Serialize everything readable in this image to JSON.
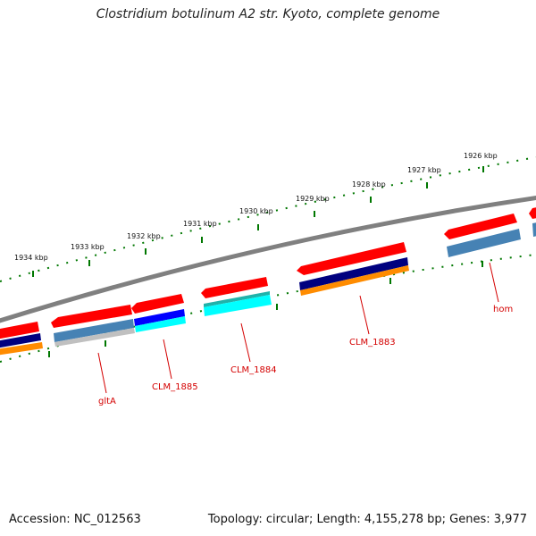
{
  "title": "Clostridium botulinum A2 str. Kyoto, complete genome",
  "footer": {
    "accession": "Accession: NC_012563",
    "summary": "Topology: circular; Length: 4,155,278 bp; Genes: 3,977"
  },
  "ticks": [
    "1926 kbp",
    "1927 kbp",
    "1928 kbp",
    "1929 kbp",
    "1930 kbp",
    "1931 kbp",
    "1932 kbp",
    "1933 kbp",
    "1934 kbp"
  ],
  "gene_labels": [
    "hom",
    "CLM_1883",
    "CLM_1884",
    "CLM_1885",
    "gltA"
  ],
  "colors": {
    "backbone": "#808080",
    "gene_red": "#ff0000",
    "navy": "#00007f",
    "orange": "#ff8c00",
    "steelblue": "#4682b4",
    "cyan": "#00ffff",
    "blue": "#0000ff",
    "silver": "#c0c0c0",
    "tick_green": "#007700",
    "label_red": "#d40000"
  }
}
